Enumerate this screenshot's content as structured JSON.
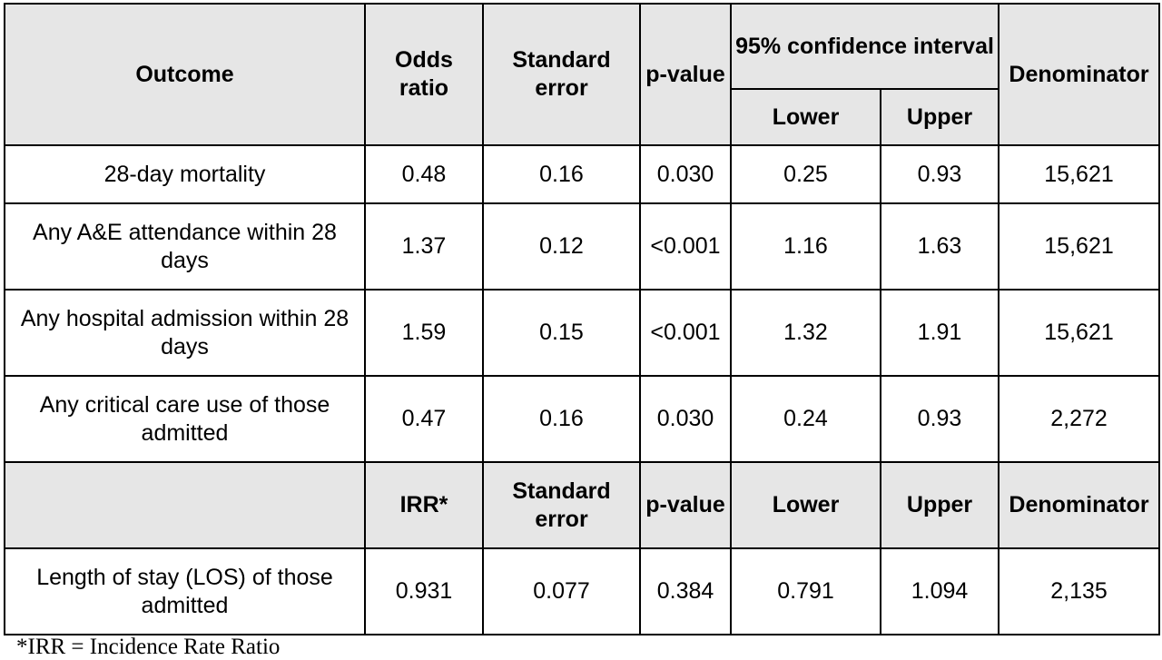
{
  "table": {
    "header": {
      "outcome": "Outcome",
      "odds_ratio": "Odds ratio",
      "standard_error": "Standard error",
      "p_value": "p-value",
      "confidence_interval": "95% confidence interval",
      "lower": "Lower",
      "upper": "Upper",
      "denominator": "Denominator"
    },
    "rows": [
      {
        "outcome": "28-day mortality",
        "ratio": "0.48",
        "se": "0.16",
        "p": "0.030",
        "lower": "0.25",
        "upper": "0.93",
        "denominator": "15,621"
      },
      {
        "outcome": "Any A&E attendance within 28 days",
        "ratio": "1.37",
        "se": "0.12",
        "p": "<0.001",
        "lower": "1.16",
        "upper": "1.63",
        "denominator": "15,621"
      },
      {
        "outcome": "Any hospital admission within 28 days",
        "ratio": "1.59",
        "se": "0.15",
        "p": "<0.001",
        "lower": "1.32",
        "upper": "1.91",
        "denominator": "15,621"
      },
      {
        "outcome": "Any critical care use of those admitted",
        "ratio": "0.47",
        "se": "0.16",
        "p": "0.030",
        "lower": "0.24",
        "upper": "0.93",
        "denominator": "2,272"
      }
    ],
    "subheader": {
      "outcome": "",
      "ratio": "IRR*",
      "standard_error": "Standard error",
      "p_value": "p-value",
      "lower": "Lower",
      "upper": "Upper",
      "denominator": "Denominator"
    },
    "irr_rows": [
      {
        "outcome": "Length of stay (LOS) of those admitted",
        "ratio": "0.931",
        "se": "0.077",
        "p": "0.384",
        "lower": "0.791",
        "upper": "1.094",
        "denominator": "2,135"
      }
    ]
  },
  "footnote": "*IRR = Incidence Rate Ratio",
  "colors": {
    "header_background": "#e6e6e6",
    "border": "#000000",
    "text": "#000000"
  }
}
